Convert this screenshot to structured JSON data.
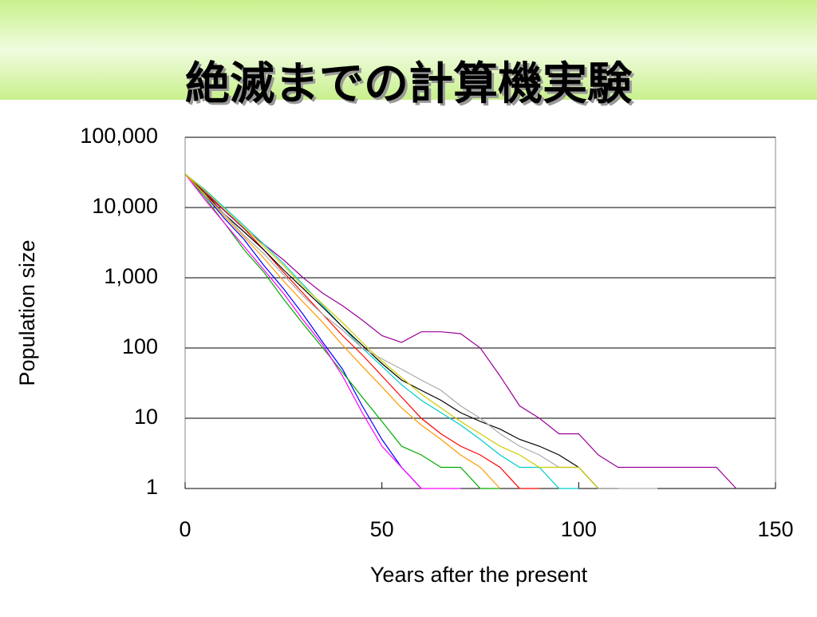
{
  "chart_data": {
    "type": "line",
    "title": "絶滅までの計算機実験",
    "x_label": "Years after the present",
    "y_label": "Population size",
    "log_y": true,
    "grid": true,
    "xlim": [
      0,
      150
    ],
    "xticks": [
      0,
      50,
      100,
      150
    ],
    "ylim": [
      1,
      100000
    ],
    "yticks": [
      1,
      10,
      100,
      {
        "value": 1000,
        "label": "1,000"
      },
      {
        "value": 10000,
        "label": "10,000"
      },
      {
        "value": 100000,
        "label": "100,000"
      }
    ],
    "x": [
      0,
      5,
      10,
      15,
      20,
      25,
      30,
      35,
      40,
      45,
      50,
      55,
      60,
      65,
      70,
      75,
      80,
      85,
      90,
      95,
      100,
      105,
      110,
      115,
      120,
      125,
      130,
      135,
      140
    ],
    "series": [
      {
        "color": "#0000ff",
        "values": [
          30000,
          15000,
          7000,
          3500,
          1500,
          700,
          300,
          120,
          50,
          15,
          5,
          2,
          1,
          null,
          null,
          null,
          null,
          null,
          null,
          null,
          null,
          null,
          null,
          null,
          null,
          null,
          null,
          null,
          null
        ]
      },
      {
        "color": "#ff0000",
        "values": [
          30000,
          16000,
          9000,
          5000,
          2500,
          1200,
          600,
          300,
          150,
          80,
          40,
          20,
          10,
          6,
          4,
          3,
          2,
          1,
          1,
          null,
          null,
          null,
          null,
          null,
          null,
          null,
          null,
          null,
          null
        ]
      },
      {
        "color": "#990099",
        "values": [
          30000,
          17000,
          9000,
          5000,
          3000,
          1800,
          1000,
          600,
          400,
          250,
          150,
          120,
          170,
          170,
          160,
          100,
          40,
          15,
          10,
          6,
          6,
          3,
          2,
          2,
          2,
          2,
          2,
          2,
          1
        ]
      },
      {
        "color": "#00aa00",
        "values": [
          30000,
          14000,
          6000,
          2500,
          1200,
          500,
          220,
          100,
          45,
          20,
          9,
          4,
          3,
          2,
          2,
          1,
          1,
          null,
          null,
          null,
          null,
          null,
          null,
          null,
          null,
          null,
          null,
          null,
          null
        ]
      },
      {
        "color": "#00cccc",
        "values": [
          30000,
          18000,
          10000,
          5500,
          3000,
          1600,
          800,
          400,
          200,
          100,
          55,
          30,
          18,
          12,
          8,
          5,
          3,
          2,
          2,
          1,
          1,
          null,
          null,
          null,
          null,
          null,
          null,
          null,
          null
        ]
      },
      {
        "color": "#ff00ff",
        "values": [
          30000,
          13000,
          6000,
          2800,
          1300,
          600,
          250,
          110,
          40,
          12,
          4,
          2,
          1,
          1,
          1,
          null,
          null,
          null,
          null,
          null,
          null,
          null,
          null,
          null,
          null,
          null,
          null,
          null,
          null
        ]
      },
      {
        "color": "#000000",
        "values": [
          30000,
          16000,
          8000,
          4500,
          2500,
          1300,
          700,
          380,
          200,
          110,
          60,
          35,
          25,
          18,
          12,
          9,
          7,
          5,
          4,
          3,
          2,
          1,
          1,
          null,
          null,
          null,
          null,
          null,
          null
        ]
      },
      {
        "color": "#aaaaaa",
        "values": [
          30000,
          15000,
          8000,
          4000,
          2200,
          1100,
          550,
          300,
          180,
          100,
          70,
          50,
          35,
          25,
          15,
          10,
          6,
          4,
          3,
          2,
          2,
          1,
          1,
          1,
          1,
          null,
          null,
          null,
          null
        ]
      },
      {
        "color": "#ff9900",
        "values": [
          30000,
          15500,
          7500,
          3800,
          1900,
          900,
          450,
          230,
          110,
          55,
          28,
          14,
          8,
          5,
          3,
          2,
          1,
          null,
          null,
          null,
          null,
          null,
          null,
          null,
          null,
          null,
          null,
          null,
          null
        ]
      },
      {
        "color": "#cccc00",
        "values": [
          30000,
          17500,
          9500,
          5200,
          2800,
          1500,
          750,
          420,
          230,
          120,
          65,
          38,
          22,
          14,
          9,
          6,
          4,
          3,
          2,
          2,
          2,
          1,
          null,
          null,
          null,
          null,
          null,
          null,
          null
        ]
      }
    ]
  }
}
